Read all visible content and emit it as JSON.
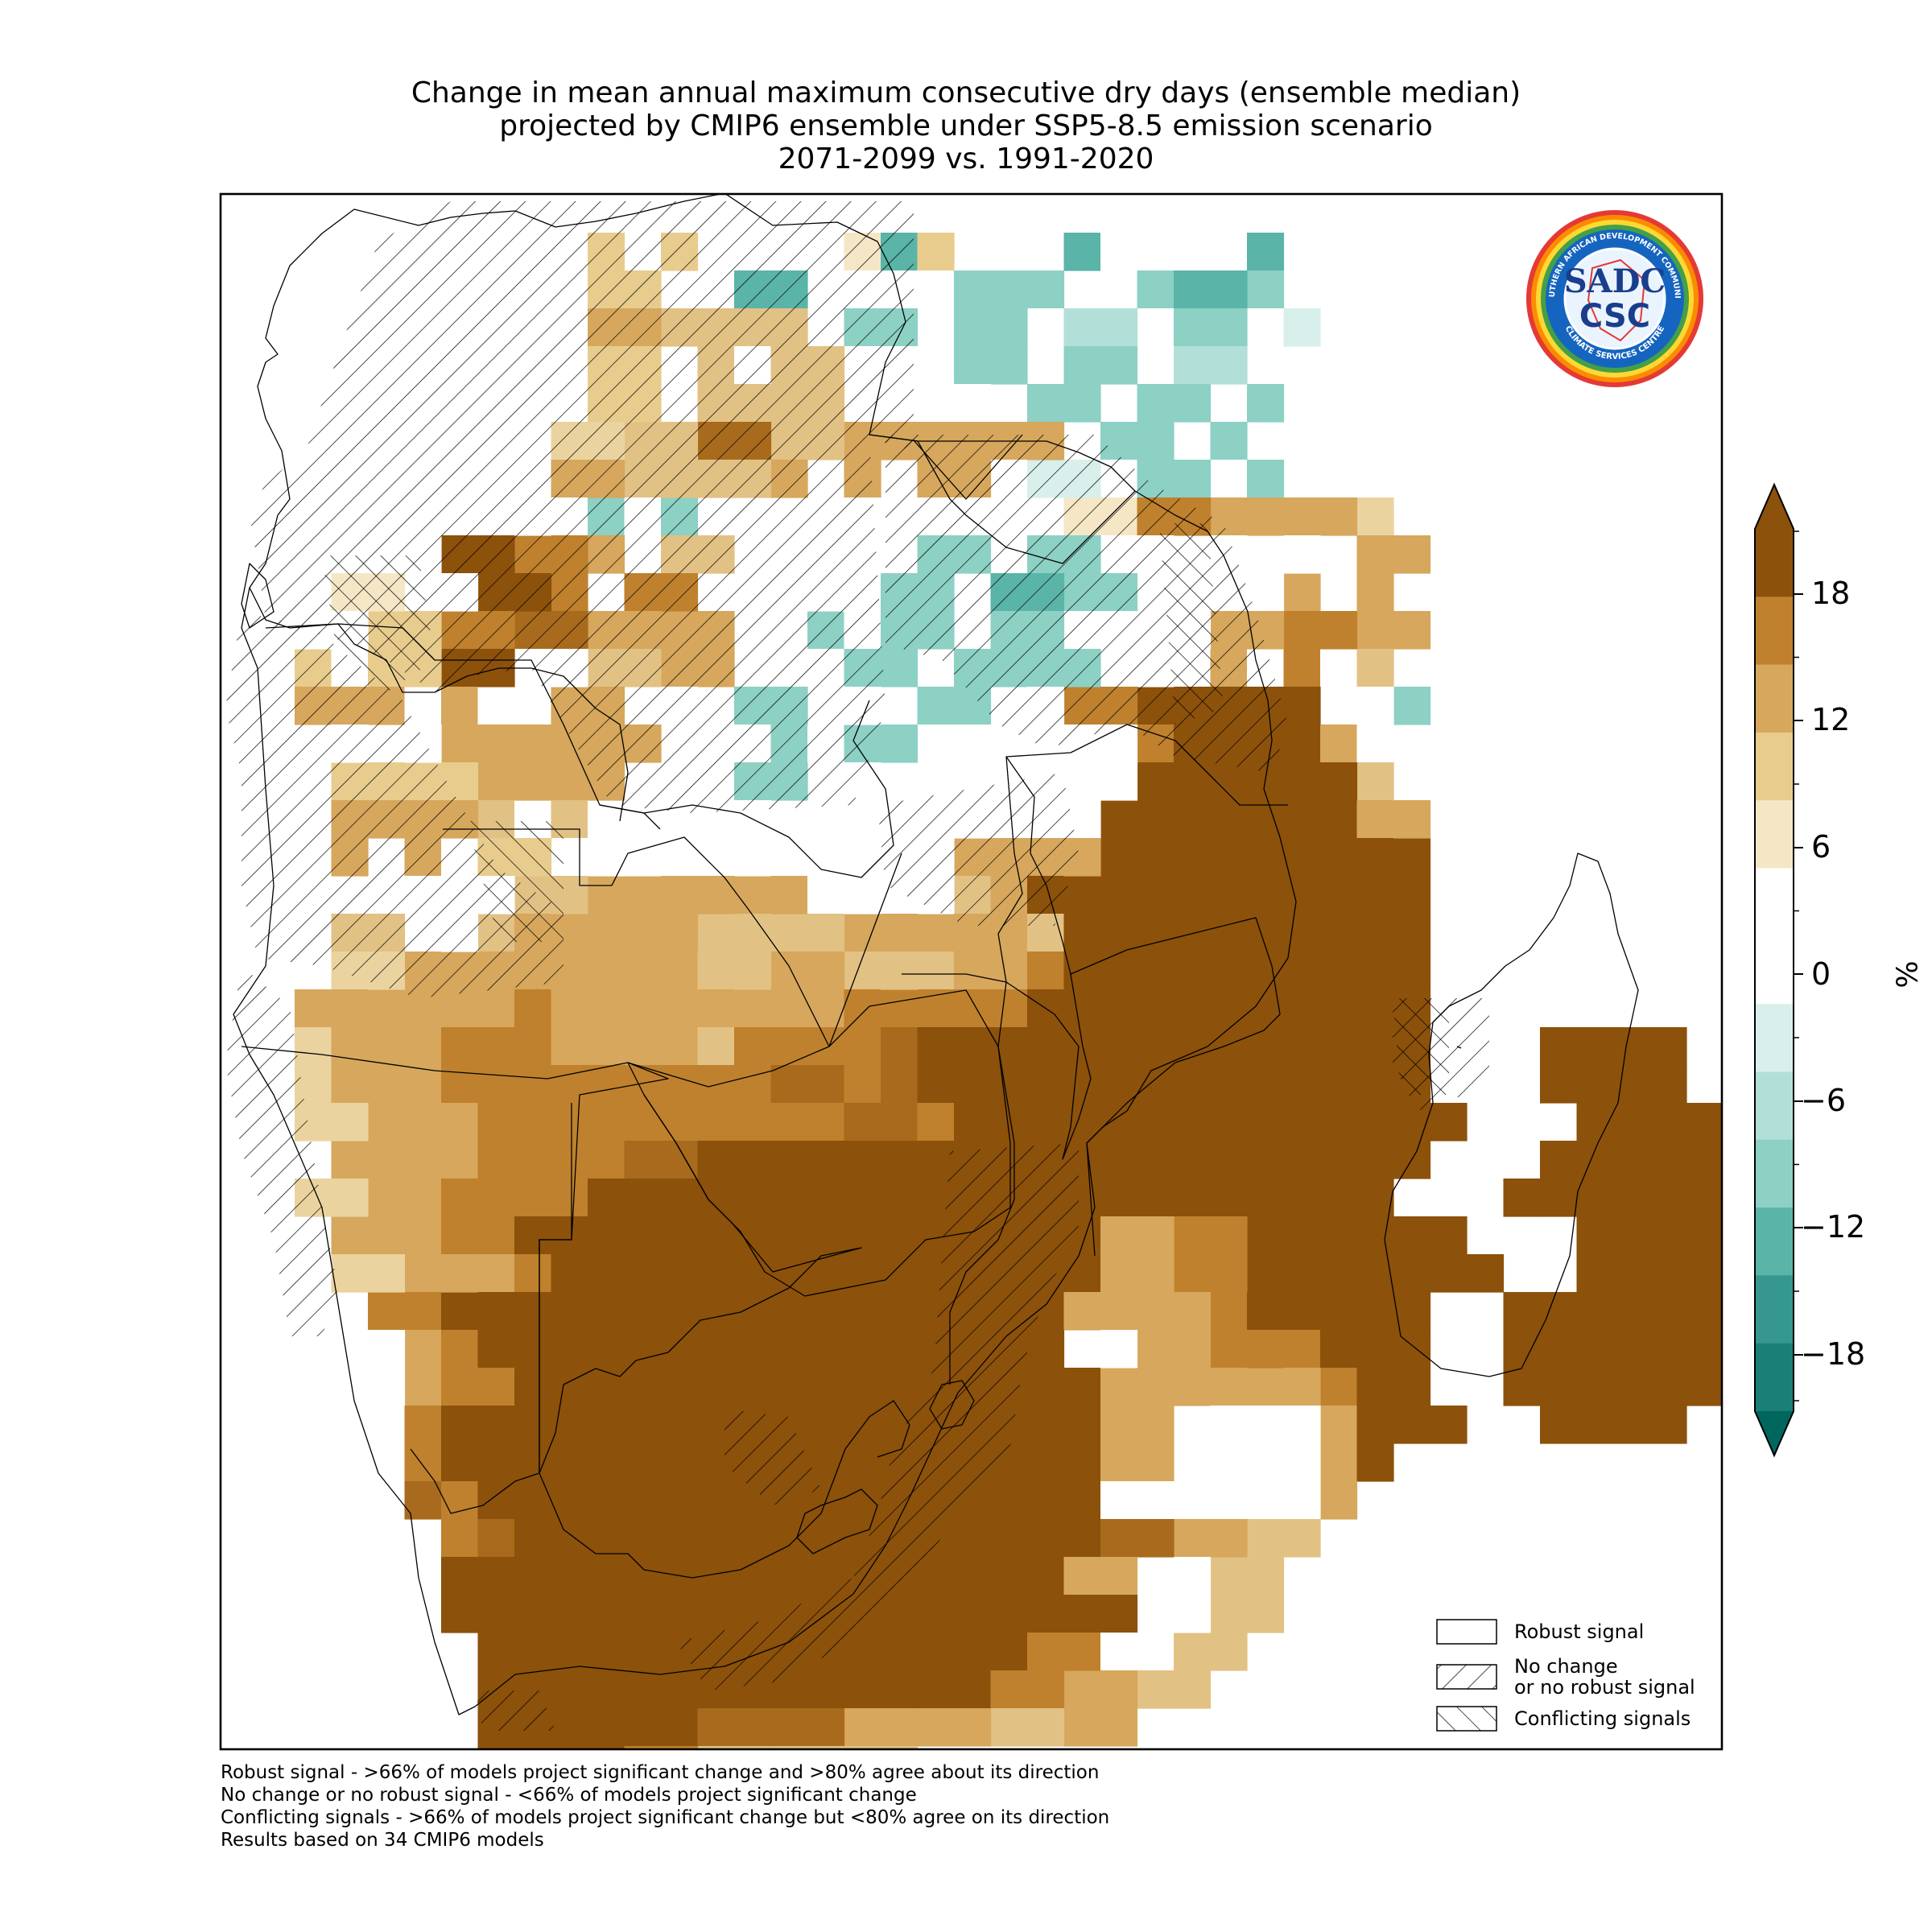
{
  "title": {
    "line1": "Change in mean annual maximum consecutive dry days (ensemble median)",
    "line2": "projected by CMIP6 ensemble under SSP5-8.5 emission scenario",
    "line3": "2071-2099 vs. 1991-2020"
  },
  "colorbar": {
    "unit": "%",
    "tick_labels": [
      "18",
      "12",
      "6",
      "0",
      "−6",
      "−12",
      "−18"
    ],
    "colors_top_to_bottom": [
      "#8c510a",
      "#bf812d",
      "#d6a75c",
      "#e8cc8d",
      "#f5e7c6",
      "#ffffff",
      "#ffffff",
      "#d8efeb",
      "#b2e0d8",
      "#8dd0c4",
      "#5ab4a8",
      "#35978f",
      "#1a7f76"
    ],
    "extend": "both",
    "over_color": "#8c510a",
    "under_color": "#01665e"
  },
  "legend": {
    "robust": "Robust signal",
    "no_change_1": "No change",
    "no_change_2": "or no robust signal",
    "conflicting": "Conflicting signals"
  },
  "footnotes": {
    "line1": "Robust signal - >66% of models project significant change and >80% agree about its direction",
    "line2": "No change or no robust signal - <66% of models project significant change",
    "line3": "Conflicting signals - >66% of models project significant change but <80% agree on its direction",
    "line4": "Results based on 34 CMIP6 models"
  },
  "logo": {
    "top_text": "SOUTHERN AFRICAN DEVELOPMENT COMMUNITY",
    "bottom_text": "CLIMATE SERVICES CENTRE",
    "mark_1": "SADC",
    "mark_2": "CSC"
  },
  "map_data": {
    "legend_keys": {
      "0": "robust",
      "1": "no change / no robust signal",
      "2": "conflicting"
    },
    "rows": [
      "                                     ",
      "          C c    a4e   4-   4       ",
      "          Ce  44 -n-3n3  34n3      ",
      "          DnEnEn-3n-3n-2n-3n-1     ",
      "          Cn EdEn-n-3n-3n-2n       ",
      "          Cn EnEn-n-n-3n-3n-3      ",
      "         BnEnGnEnDnDnDn-3n-3       ",
      "         DnEnEnD D Dn-1n-3n-3      ",
      "    nn nn-3-3   -n -n  A+FnDnDnB   ",
      "    nnHnFnD En  -n-3n-3n-n-n-n Dn  ",
      "   An-nHnF Fn- -n-3n-4n3n-n-nD D   ",
      "  nnCnFnGnDnDn--3-3n-3n-n-nDnFnDn  ",
      "  C-CnHn-nEnDn-n-3n-3n3n-n-D-F-E   ",
      "  DnD-D- Dn-n-3n-n-3n-nFnHHHHn n3  ",
      "   n nDmDnDn-n-3-3n-n-n-nFHHHHD-   ",
      "   CnCnDnDn-n-3n-n--n-n-nHHHHHnE   ",
      "   DnDnE-E-nn-n-n-n-nn-nHHHHHHHDn  ",
      "   D D-Cn-nn-nn-nn-nDnDnHHHHHHHHH  ",
      "    -n-nEnDmDnDnnn-nEDHHHHHHHHHHH  ",
      "   En-nEmDmDnEnEnDnDnDEHHHHHHHHHH  ",
      "   BnDmDmDmDmEnDnEnEDDFHHHHHHHHHH  ",
      "  DDDDDDFDDDDDDDDFFFFFHHHHHHHHHHH  ",
      "  BDDDFFFDDDDEFFFFGHHHHHHHHHHHHHH   HHHH",
      "  BDDDFFFFFFFFFGGFGHHHHHHHHHHHHHH   HHHH",
      "  BnDDDFFFFFFFFFFGGFHHHHHHHHHHHHHH   HHHHH",
      "   DnDDFFFFGGHHHHHHHHHHHHHHHHHHHH   HHHHH",
      "  BnDDFFFFHHHHHHHHHHHHHHHHHHHHHH   HHHHHH",
      "   DnDFFHHHHHHHHHHHHHHHHDnFnHHHHHH   HHHHH",
      "   BnDnDFHHHHHHHHHHHHHHHDnFnHHHHHHH  HHHHHHH",
      "    FFHHHHHHHHHHHHHHHHHDnDnFHHHHH  HHHHHHHH",
      "    nDFHHHHHHHHHHHHHHHH nDnFnFHHH  HHHHHHHH",
      "    nDFFHHHHHHHHHHHHHHHHDnDnDnFHH  HHHHHH",
      "     FHHHHHHHHHHHHHHHHHHDn n-nDHHH  HHHH",
      "     FHHHHHHHHHHHHHHHHHHDn n-nDH",
      "     GFHHHHHHHHHHHHHHHHH-n-n-nD",
      "      FGHHHHHHHHHHHHHHHHGnDnEn",
      "      HHHHHHHHHHHHHHHHHDn-nEn",
      "      HHHHHHHHHHHHHHHHHHn-nEn",
      "       HHHHHHHHHHHHHHHFnn-En",
      "       HHHHHHHHHHHHHHFnDnEn",
      "       HHHHHHGnGnDnDnEnDn",
      "       HHHHFnEnEnEn",
      "        DnEn"
    ]
  }
}
